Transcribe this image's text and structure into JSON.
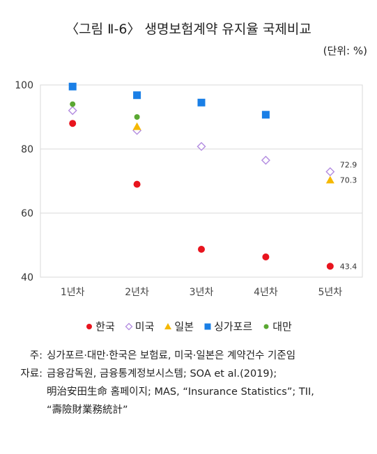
{
  "title": "〈그림 Ⅱ-6〉 생명보험계약 유지율 국제비교",
  "unit": "(단위: %)",
  "colors": {
    "korea": "#e8141e",
    "usa": "#b28be0",
    "japan": "#f5b800",
    "singapore": "#1a7fe6",
    "taiwan": "#5aa832",
    "grid": "#d9d9d9"
  },
  "chart_data": {
    "type": "scatter",
    "categories": [
      "1년차",
      "2년차",
      "3년차",
      "4년차",
      "5년차"
    ],
    "ylim": [
      40,
      100
    ],
    "yticks": [
      40,
      60,
      80,
      100
    ],
    "grid": true,
    "legend_position": "bottom",
    "series": [
      {
        "name": "한국",
        "key": "korea",
        "marker": "circle",
        "values": [
          88,
          69,
          48.7,
          46.3,
          43.4
        ]
      },
      {
        "name": "미국",
        "key": "usa",
        "marker": "diamond-open",
        "values": [
          92,
          85.8,
          80.8,
          76.5,
          72.9
        ]
      },
      {
        "name": "일본",
        "key": "japan",
        "marker": "triangle",
        "values": [
          null,
          87,
          null,
          null,
          70.3
        ]
      },
      {
        "name": "싱가포르",
        "key": "singapore",
        "marker": "square",
        "values": [
          99.5,
          96.8,
          94.5,
          90.7,
          null
        ]
      },
      {
        "name": "대만",
        "key": "taiwan",
        "marker": "circle-small",
        "values": [
          94,
          90,
          null,
          null,
          null
        ]
      }
    ],
    "data_labels": [
      {
        "series": "미국",
        "category": "5년차",
        "text": "72.9"
      },
      {
        "series": "일본",
        "category": "5년차",
        "text": "70.3"
      },
      {
        "series": "한국",
        "category": "5년차",
        "text": "43.4"
      }
    ]
  },
  "notes": [
    {
      "label": "주:",
      "lines": [
        "싱가포르·대만·한국은 보험료, 미국·일본은 계약건수 기준임"
      ]
    },
    {
      "label": "자료:",
      "lines": [
        "금융감독원, 금융통계정보시스템; SOA et al.(2019);",
        "明治安田生命 홈페이지; MAS, “Insurance Statistics”; TII,",
        "“壽險財業務統計”"
      ]
    }
  ]
}
